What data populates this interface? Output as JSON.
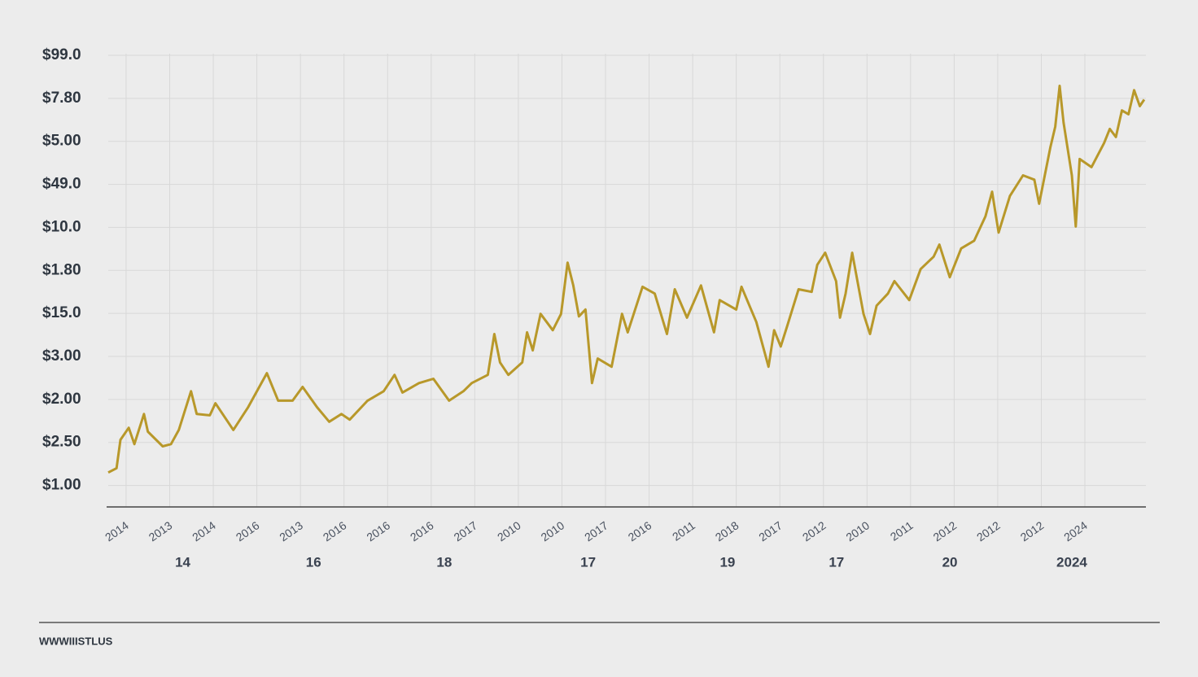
{
  "chart_data": {
    "type": "line",
    "color": "#b8982a",
    "grid": true,
    "xlim": [
      -0.41,
      23.4
    ],
    "ylim": [
      -0.5,
      10
    ],
    "yticks": [
      {
        "value": 0,
        "label": "$1.00"
      },
      {
        "value": 1,
        "label": "$2.50"
      },
      {
        "value": 2,
        "label": "$2.00"
      },
      {
        "value": 3,
        "label": "$3.00"
      },
      {
        "value": 4,
        "label": "$15.0"
      },
      {
        "value": 5,
        "label": "$1.80"
      },
      {
        "value": 6,
        "label": "$10.0"
      },
      {
        "value": 7,
        "label": "$49.0"
      },
      {
        "value": 8,
        "label": "$5.00"
      },
      {
        "value": 9,
        "label": "$7.80"
      },
      {
        "value": 10,
        "label": "$99.0"
      }
    ],
    "xticks": [
      {
        "value": 0,
        "label": "2014"
      },
      {
        "value": 1,
        "label": "2013"
      },
      {
        "value": 2,
        "label": "2014"
      },
      {
        "value": 3,
        "label": "2016"
      },
      {
        "value": 4,
        "label": "2013"
      },
      {
        "value": 5,
        "label": "2016"
      },
      {
        "value": 6,
        "label": "2016"
      },
      {
        "value": 7,
        "label": "2016"
      },
      {
        "value": 8,
        "label": "2017"
      },
      {
        "value": 9,
        "label": "2010"
      },
      {
        "value": 10,
        "label": "2010"
      },
      {
        "value": 11,
        "label": "2017"
      },
      {
        "value": 12,
        "label": "2016"
      },
      {
        "value": 13,
        "label": "2011"
      },
      {
        "value": 14,
        "label": "2018"
      },
      {
        "value": 15,
        "label": "2017"
      },
      {
        "value": 16,
        "label": "2012"
      },
      {
        "value": 17,
        "label": "2010"
      },
      {
        "value": 18,
        "label": "2011"
      },
      {
        "value": 19,
        "label": "2012"
      },
      {
        "value": 20,
        "label": "2012"
      },
      {
        "value": 21,
        "label": "2012"
      },
      {
        "value": 22,
        "label": "2024"
      }
    ],
    "x_group_labels": [
      {
        "value": 1.3,
        "label": "14"
      },
      {
        "value": 4.3,
        "label": "16"
      },
      {
        "value": 7.3,
        "label": "18"
      },
      {
        "value": 10.6,
        "label": "17"
      },
      {
        "value": 13.8,
        "label": "19"
      },
      {
        "value": 16.3,
        "label": "17"
      },
      {
        "value": 18.9,
        "label": "20"
      },
      {
        "value": 21.7,
        "label": "2024"
      }
    ],
    "x": [
      -0.41,
      -0.22,
      -0.13,
      0.06,
      0.19,
      0.41,
      0.5,
      0.84,
      1.03,
      1.21,
      1.49,
      1.62,
      1.92,
      2.05,
      2.46,
      2.8,
      3.23,
      3.49,
      3.82,
      4.05,
      4.38,
      4.66,
      4.94,
      5.13,
      5.54,
      5.91,
      6.16,
      6.34,
      6.72,
      7.05,
      7.41,
      7.74,
      7.93,
      8.3,
      8.45,
      8.58,
      8.77,
      9.09,
      9.2,
      9.33,
      9.51,
      9.79,
      9.98,
      10.13,
      10.26,
      10.39,
      10.54,
      10.69,
      10.82,
      11.14,
      11.38,
      11.51,
      11.85,
      12.13,
      12.41,
      12.59,
      12.87,
      13.19,
      13.49,
      13.62,
      14.0,
      14.12,
      14.46,
      14.74,
      14.87,
      15.02,
      15.17,
      15.43,
      15.73,
      15.86,
      16.04,
      16.29,
      16.38,
      16.51,
      16.66,
      16.92,
      17.07,
      17.22,
      17.48,
      17.63,
      17.97,
      18.23,
      18.53,
      18.66,
      18.9,
      19.16,
      19.46,
      19.72,
      19.87,
      20.02,
      20.28,
      20.58,
      20.84,
      20.95,
      21.21,
      21.32,
      21.42,
      21.51,
      21.7,
      21.79,
      21.88,
      22.15,
      22.44,
      22.57,
      22.71,
      22.85,
      23.0,
      23.13,
      23.26,
      23.36
    ],
    "values": [
      0.3,
      0.4,
      1.06,
      1.34,
      0.96,
      1.66,
      1.25,
      0.91,
      0.96,
      1.29,
      2.19,
      1.66,
      1.63,
      1.91,
      1.29,
      1.82,
      2.61,
      1.97,
      1.97,
      2.29,
      1.82,
      1.48,
      1.66,
      1.53,
      1.97,
      2.19,
      2.57,
      2.16,
      2.38,
      2.48,
      1.97,
      2.19,
      2.38,
      2.57,
      3.52,
      2.86,
      2.57,
      2.86,
      3.56,
      3.14,
      3.99,
      3.61,
      3.99,
      5.18,
      4.65,
      3.93,
      4.09,
      2.38,
      2.95,
      2.76,
      3.99,
      3.56,
      4.62,
      4.46,
      3.52,
      4.56,
      3.9,
      4.65,
      3.56,
      4.31,
      4.09,
      4.62,
      3.8,
      2.76,
      3.61,
      3.23,
      3.71,
      4.56,
      4.5,
      5.13,
      5.41,
      4.75,
      3.9,
      4.46,
      5.41,
      3.99,
      3.52,
      4.18,
      4.46,
      4.75,
      4.31,
      5.03,
      5.32,
      5.6,
      4.84,
      5.51,
      5.69,
      6.26,
      6.83,
      5.88,
      6.73,
      7.21,
      7.11,
      6.55,
      7.87,
      8.34,
      9.29,
      8.44,
      7.21,
      6.02,
      7.59,
      7.4,
      7.96,
      8.29,
      8.1,
      8.72,
      8.63,
      9.19,
      8.82,
      8.97
    ]
  },
  "footer": "WWWIIISTLUS"
}
